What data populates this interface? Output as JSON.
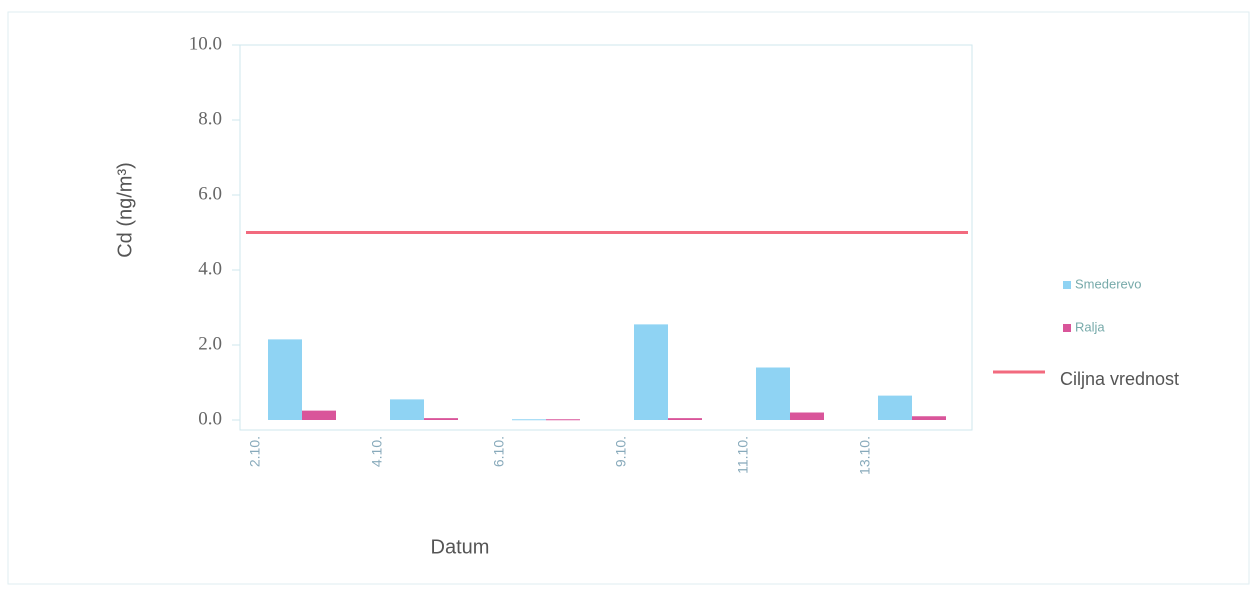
{
  "chart_data": {
    "type": "bar",
    "ylabel": "Cd (ng/m³)",
    "xlabel": "Datum",
    "categories": [
      "2.10.",
      "4.10.",
      "6.10.",
      "9.10.",
      "11.10.",
      "13.10."
    ],
    "series": [
      {
        "name": "Smederevo",
        "color": "#8fd3f3",
        "values": [
          2.15,
          0.55,
          0.02,
          2.55,
          1.4,
          0.65
        ]
      },
      {
        "name": "Ralja",
        "color": "#d9559a",
        "values": [
          0.25,
          0.05,
          0.02,
          0.05,
          0.2,
          0.1
        ]
      }
    ],
    "reference_lines": [
      {
        "name": "Ciljna vrednost",
        "value": 5,
        "color": "#f26a7e"
      }
    ],
    "ylim": [
      0,
      10
    ],
    "yticks": [
      {
        "value": 0,
        "label": "0.0"
      },
      {
        "value": 2,
        "label": "2.0"
      },
      {
        "value": 4,
        "label": "4.0"
      },
      {
        "value": 6,
        "label": "6.0"
      },
      {
        "value": 8,
        "label": "8.0"
      },
      {
        "value": 10,
        "label": "10.0"
      }
    ]
  }
}
